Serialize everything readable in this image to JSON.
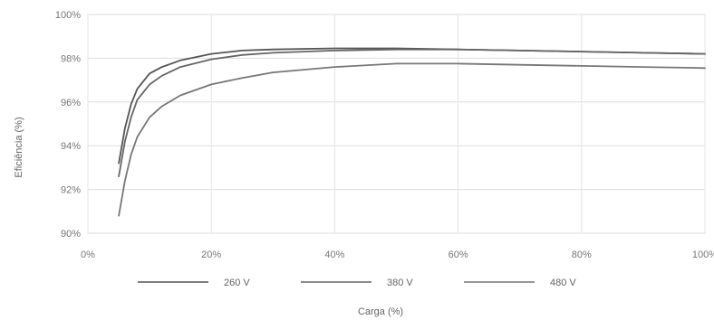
{
  "chart_data": {
    "type": "line",
    "title": "",
    "xlabel": "Carga (%)",
    "ylabel": "Eficiência (%)",
    "xlim": [
      0,
      100
    ],
    "ylim": [
      90,
      100
    ],
    "x_ticks": [
      {
        "value": 0,
        "label": "0%"
      },
      {
        "value": 20,
        "label": "20%"
      },
      {
        "value": 40,
        "label": "40%"
      },
      {
        "value": 60,
        "label": "60%"
      },
      {
        "value": 80,
        "label": "80%"
      },
      {
        "value": 100,
        "label": "100%"
      }
    ],
    "y_ticks": [
      {
        "value": 90,
        "label": "90%"
      },
      {
        "value": 92,
        "label": "92%"
      },
      {
        "value": 94,
        "label": "94%"
      },
      {
        "value": 96,
        "label": "96%"
      },
      {
        "value": 98,
        "label": "98%"
      },
      {
        "value": 100,
        "label": "100%"
      }
    ],
    "grid": true,
    "legend_position": "bottom",
    "series": [
      {
        "name": "260 V",
        "color": "#555555",
        "x": [
          5,
          6,
          7,
          8,
          10,
          12,
          15,
          20,
          25,
          30,
          40,
          50,
          60,
          70,
          80,
          90,
          100
        ],
        "y": [
          93.2,
          94.8,
          95.9,
          96.6,
          97.3,
          97.6,
          97.9,
          98.2,
          98.35,
          98.4,
          98.45,
          98.45,
          98.4,
          98.35,
          98.3,
          98.25,
          98.2
        ]
      },
      {
        "name": "380 V",
        "color": "#666666",
        "x": [
          5,
          6,
          7,
          8,
          10,
          12,
          15,
          20,
          25,
          30,
          40,
          50,
          60,
          70,
          80,
          90,
          100
        ],
        "y": [
          92.6,
          94.2,
          95.3,
          96.1,
          96.8,
          97.2,
          97.6,
          97.95,
          98.15,
          98.25,
          98.35,
          98.4,
          98.4,
          98.35,
          98.3,
          98.25,
          98.2
        ]
      },
      {
        "name": "480 V",
        "color": "#777777",
        "x": [
          5,
          6,
          7,
          8,
          10,
          12,
          15,
          20,
          25,
          30,
          40,
          50,
          60,
          70,
          80,
          90,
          100
        ],
        "y": [
          90.8,
          92.4,
          93.6,
          94.4,
          95.3,
          95.8,
          96.3,
          96.8,
          97.1,
          97.35,
          97.6,
          97.75,
          97.75,
          97.7,
          97.65,
          97.6,
          97.55
        ]
      }
    ]
  }
}
